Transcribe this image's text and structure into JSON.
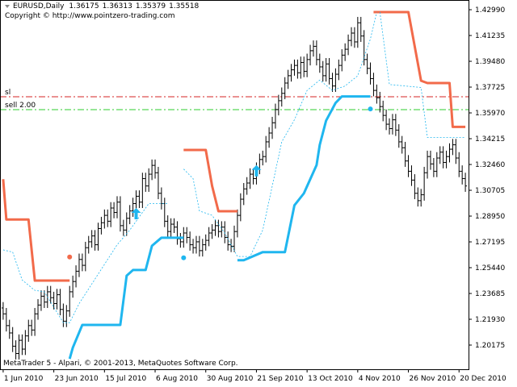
{
  "chart_data": {
    "type": "ohlc",
    "title": "EURUSD,Daily",
    "last_quote": [
      1.36175,
      1.36313,
      1.35379,
      1.35518
    ],
    "copyright": "Copyright © http://www.pointzero-trading.com",
    "footer": "MetaTrader 5 - Alpari, © 2001-2013, MetaQuotes Software Corp.",
    "bar_color": "#000000",
    "xlim": [
      -1,
      147
    ],
    "ylim": [
      1.1853,
      1.4365
    ],
    "xticks": [
      {
        "value": 0,
        "label": "1 Jun 2010"
      },
      {
        "value": 16,
        "label": "23 Jun 2010"
      },
      {
        "value": 32,
        "label": "15 Jul 2010"
      },
      {
        "value": 48,
        "label": "6 Aug 2010"
      },
      {
        "value": 64,
        "label": "30 Aug 2010"
      },
      {
        "value": 80,
        "label": "21 Sep 2010"
      },
      {
        "value": 96,
        "label": "13 Oct 2010"
      },
      {
        "value": 112,
        "label": "4 Nov 2010"
      },
      {
        "value": 128,
        "label": "26 Nov 2010"
      },
      {
        "value": 144,
        "label": "20 Dec 2010"
      }
    ],
    "yticks": [
      {
        "value": 1.4299,
        "label": "1.42990"
      },
      1.41235,
      {
        "value": 1.3948,
        "label": "1.39480"
      },
      1.37725,
      {
        "value": 1.3597,
        "label": "1.35970"
      },
      1.34215,
      {
        "value": 1.3246,
        "label": "1.32460"
      },
      1.30705,
      {
        "value": 1.2895,
        "label": "1.28950"
      },
      1.27195,
      {
        "value": 1.2544,
        "label": "1.25440"
      },
      1.23685,
      {
        "value": 1.2193,
        "label": "1.21930"
      },
      1.20175
    ],
    "open": [
      1.227,
      1.223,
      1.215,
      1.21,
      1.201,
      1.196,
      1.205,
      1.199,
      1.208,
      1.215,
      1.212,
      1.223,
      1.229,
      1.235,
      1.231,
      1.238,
      1.234,
      1.23,
      1.236,
      1.226,
      1.218,
      1.225,
      1.238,
      1.245,
      1.252,
      1.26,
      1.256,
      1.268,
      1.272,
      1.276,
      1.27,
      1.281,
      1.285,
      1.29,
      1.286,
      1.295,
      1.292,
      1.299,
      1.283,
      1.28,
      1.288,
      1.293,
      1.298,
      1.303,
      1.299,
      1.315,
      1.31,
      1.318,
      1.324,
      1.319,
      1.305,
      1.298,
      1.286,
      1.279,
      1.284,
      1.282,
      1.274,
      1.272,
      1.278,
      1.275,
      1.27,
      1.268,
      1.272,
      1.266,
      1.27,
      1.273,
      1.278,
      1.28,
      1.283,
      1.279,
      1.282,
      1.275,
      1.27,
      1.269,
      1.279,
      1.29,
      1.301,
      1.308,
      1.312,
      1.318,
      1.315,
      1.322,
      1.328,
      1.33,
      1.34,
      1.346,
      1.353,
      1.362,
      1.368,
      1.373,
      1.38,
      1.385,
      1.389,
      1.392,
      1.387,
      1.394,
      1.388,
      1.396,
      1.402,
      1.405,
      1.396,
      1.391,
      1.385,
      1.393,
      1.383,
      1.378,
      1.386,
      1.392,
      1.399,
      1.403,
      1.409,
      1.414,
      1.408,
      1.421,
      1.412,
      1.396,
      1.39,
      1.383,
      1.375,
      1.37,
      1.364,
      1.358,
      1.352,
      1.349,
      1.355,
      1.348,
      1.34,
      1.336,
      1.327,
      1.32,
      1.314,
      1.305,
      1.3,
      1.304,
      1.319,
      1.33,
      1.325,
      1.32,
      1.329,
      1.333,
      1.326,
      1.33,
      1.335,
      1.338,
      1.329,
      1.32,
      1.315
    ],
    "high": [
      1.231,
      1.227,
      1.219,
      1.214,
      1.205,
      1.209,
      1.209,
      1.212,
      1.219,
      1.219,
      1.227,
      1.233,
      1.239,
      1.239,
      1.242,
      1.242,
      1.238,
      1.24,
      1.24,
      1.23,
      1.229,
      1.242,
      1.249,
      1.256,
      1.264,
      1.264,
      1.272,
      1.276,
      1.28,
      1.28,
      1.285,
      1.289,
      1.294,
      1.294,
      1.299,
      1.299,
      1.303,
      1.303,
      1.287,
      1.292,
      1.297,
      1.302,
      1.307,
      1.307,
      1.319,
      1.319,
      1.322,
      1.328,
      1.328,
      1.323,
      1.309,
      1.302,
      1.29,
      1.288,
      1.288,
      1.286,
      1.278,
      1.282,
      1.282,
      1.279,
      1.274,
      1.276,
      1.276,
      1.274,
      1.277,
      1.282,
      1.284,
      1.287,
      1.287,
      1.286,
      1.286,
      1.279,
      1.274,
      1.283,
      1.294,
      1.305,
      1.312,
      1.316,
      1.322,
      1.322,
      1.326,
      1.332,
      1.334,
      1.344,
      1.35,
      1.357,
      1.366,
      1.372,
      1.377,
      1.384,
      1.389,
      1.393,
      1.396,
      1.396,
      1.398,
      1.398,
      1.4,
      1.406,
      1.409,
      1.409,
      1.4,
      1.395,
      1.397,
      1.397,
      1.387,
      1.39,
      1.396,
      1.403,
      1.407,
      1.413,
      1.418,
      1.418,
      1.425,
      1.425,
      1.416,
      1.4,
      1.394,
      1.387,
      1.379,
      1.374,
      1.368,
      1.362,
      1.356,
      1.359,
      1.359,
      1.352,
      1.344,
      1.34,
      1.331,
      1.324,
      1.318,
      1.309,
      1.308,
      1.323,
      1.334,
      1.334,
      1.329,
      1.333,
      1.337,
      1.337,
      1.334,
      1.339,
      1.342,
      1.342,
      1.333,
      1.324,
      1.319
    ],
    "low": [
      1.219,
      1.211,
      1.206,
      1.197,
      1.192,
      1.192,
      1.195,
      1.195,
      1.204,
      1.208,
      1.208,
      1.219,
      1.225,
      1.227,
      1.227,
      1.23,
      1.226,
      1.226,
      1.222,
      1.214,
      1.214,
      1.221,
      1.234,
      1.241,
      1.248,
      1.252,
      1.252,
      1.264,
      1.268,
      1.266,
      1.266,
      1.277,
      1.281,
      1.282,
      1.282,
      1.288,
      1.288,
      1.279,
      1.276,
      1.276,
      1.284,
      1.289,
      1.294,
      1.295,
      1.295,
      1.306,
      1.306,
      1.314,
      1.315,
      1.301,
      1.294,
      1.282,
      1.275,
      1.275,
      1.278,
      1.27,
      1.268,
      1.268,
      1.271,
      1.266,
      1.264,
      1.264,
      1.262,
      1.262,
      1.266,
      1.269,
      1.274,
      1.276,
      1.275,
      1.275,
      1.271,
      1.266,
      1.265,
      1.265,
      1.275,
      1.286,
      1.297,
      1.304,
      1.308,
      1.311,
      1.311,
      1.318,
      1.324,
      1.326,
      1.336,
      1.342,
      1.349,
      1.358,
      1.364,
      1.369,
      1.376,
      1.381,
      1.385,
      1.383,
      1.383,
      1.384,
      1.384,
      1.392,
      1.398,
      1.392,
      1.387,
      1.381,
      1.381,
      1.379,
      1.374,
      1.374,
      1.382,
      1.388,
      1.395,
      1.399,
      1.405,
      1.404,
      1.404,
      1.408,
      1.392,
      1.386,
      1.379,
      1.371,
      1.366,
      1.36,
      1.354,
      1.348,
      1.345,
      1.345,
      1.344,
      1.336,
      1.332,
      1.323,
      1.316,
      1.31,
      1.301,
      1.296,
      1.296,
      1.3,
      1.315,
      1.321,
      1.316,
      1.316,
      1.325,
      1.322,
      1.322,
      1.326,
      1.331,
      1.325,
      1.316,
      1.311,
      1.306
    ],
    "close": [
      1.223,
      1.215,
      1.21,
      1.201,
      1.196,
      1.205,
      1.199,
      1.208,
      1.215,
      1.212,
      1.223,
      1.229,
      1.235,
      1.231,
      1.238,
      1.234,
      1.23,
      1.236,
      1.226,
      1.218,
      1.225,
      1.238,
      1.245,
      1.252,
      1.26,
      1.256,
      1.268,
      1.272,
      1.276,
      1.27,
      1.281,
      1.285,
      1.29,
      1.286,
      1.295,
      1.292,
      1.299,
      1.283,
      1.28,
      1.288,
      1.293,
      1.298,
      1.303,
      1.299,
      1.315,
      1.31,
      1.318,
      1.324,
      1.319,
      1.305,
      1.298,
      1.286,
      1.279,
      1.284,
      1.282,
      1.274,
      1.272,
      1.278,
      1.275,
      1.27,
      1.268,
      1.272,
      1.266,
      1.27,
      1.273,
      1.278,
      1.28,
      1.283,
      1.279,
      1.282,
      1.275,
      1.27,
      1.269,
      1.279,
      1.29,
      1.301,
      1.308,
      1.312,
      1.318,
      1.315,
      1.322,
      1.328,
      1.33,
      1.34,
      1.346,
      1.353,
      1.362,
      1.368,
      1.373,
      1.38,
      1.385,
      1.389,
      1.392,
      1.387,
      1.394,
      1.388,
      1.396,
      1.402,
      1.405,
      1.396,
      1.391,
      1.385,
      1.393,
      1.383,
      1.378,
      1.386,
      1.392,
      1.399,
      1.403,
      1.409,
      1.414,
      1.408,
      1.421,
      1.412,
      1.396,
      1.39,
      1.383,
      1.375,
      1.37,
      1.364,
      1.358,
      1.352,
      1.349,
      1.355,
      1.348,
      1.34,
      1.336,
      1.327,
      1.32,
      1.314,
      1.305,
      1.3,
      1.304,
      1.319,
      1.33,
      1.325,
      1.32,
      1.329,
      1.333,
      1.326,
      1.33,
      1.335,
      1.338,
      1.329,
      1.32,
      1.315,
      1.31
    ],
    "lines": [
      {
        "color": "#f26a4a",
        "width": 3,
        "x": [
          0,
          1,
          8,
          10,
          21,
          null,
          57,
          64,
          66,
          68,
          74,
          null,
          117,
          128,
          132,
          134,
          141,
          142,
          146
        ],
        "values": [
          1.3146,
          1.2872,
          1.2872,
          1.2456,
          1.2456,
          null,
          1.3345,
          1.3345,
          1.31,
          1.2928,
          1.2928,
          null,
          1.4283,
          1.4283,
          1.3816,
          1.38,
          1.38,
          1.3502,
          1.3502
        ]
      },
      {
        "color": "#1fb6ef",
        "width": 3,
        "x": [
          21,
          22,
          25,
          37,
          39,
          41,
          45,
          47,
          50,
          57,
          null,
          74,
          76,
          82,
          89,
          92,
          95,
          99,
          100,
          102,
          105,
          107,
          116
        ],
        "values": [
          1.1924,
          1.2,
          1.2155,
          1.2155,
          1.2489,
          1.2528,
          1.2528,
          1.2693,
          1.2748,
          1.2748,
          null,
          1.2595,
          1.2595,
          1.265,
          1.265,
          1.2968,
          1.305,
          1.3242,
          1.3379,
          1.3544,
          1.3665,
          1.3709,
          1.3709
        ]
      },
      {
        "color": "#1fb6ef",
        "width": 0.8,
        "dash": "2 2",
        "x": [
          0,
          3,
          6,
          10,
          13,
          19,
          21,
          24,
          30,
          36,
          40,
          46,
          52,
          null,
          57,
          60,
          62,
          66,
          70,
          74,
          78,
          82,
          86,
          88,
          92,
          96,
          100,
          104,
          108,
          112,
          116,
          118
        ],
        "values": [
          1.2665,
          1.265,
          1.246,
          1.239,
          1.238,
          1.217,
          1.217,
          1.23,
          1.25,
          1.27,
          1.28,
          1.298,
          1.298,
          null,
          1.3215,
          1.315,
          1.293,
          1.29,
          1.278,
          1.262,
          1.262,
          1.28,
          1.32,
          1.34,
          1.355,
          1.375,
          1.382,
          1.375,
          1.378,
          1.385,
          1.41,
          1.428
        ]
      },
      {
        "color": "#1fb6ef",
        "width": 0.8,
        "dash": "2 2",
        "x": [
          119,
          122,
          132,
          134,
          146
        ],
        "values": [
          1.4283,
          1.379,
          1.377,
          1.343,
          1.343
        ]
      }
    ],
    "levels": [
      {
        "label": "sl",
        "value": 1.3707,
        "color": "#d42424"
      },
      {
        "label": "sell 2.00",
        "value": 1.3619,
        "color": "#2ccc2c"
      }
    ],
    "points": [
      {
        "shape": "dot",
        "color": "#f26a4a",
        "x": 21,
        "value": 1.2617
      },
      {
        "shape": "dot",
        "color": "#1fb6ef",
        "x": 57,
        "value": 1.2611
      },
      {
        "shape": "dot",
        "color": "#1fb6ef",
        "x": 116,
        "value": 1.3624
      },
      {
        "shape": "arrow-up",
        "color": "#1fb6ef",
        "x": 42,
        "value": 1.2906
      },
      {
        "shape": "arrow-up",
        "color": "#1fb6ef",
        "x": 80,
        "value": 1.3198
      }
    ]
  }
}
